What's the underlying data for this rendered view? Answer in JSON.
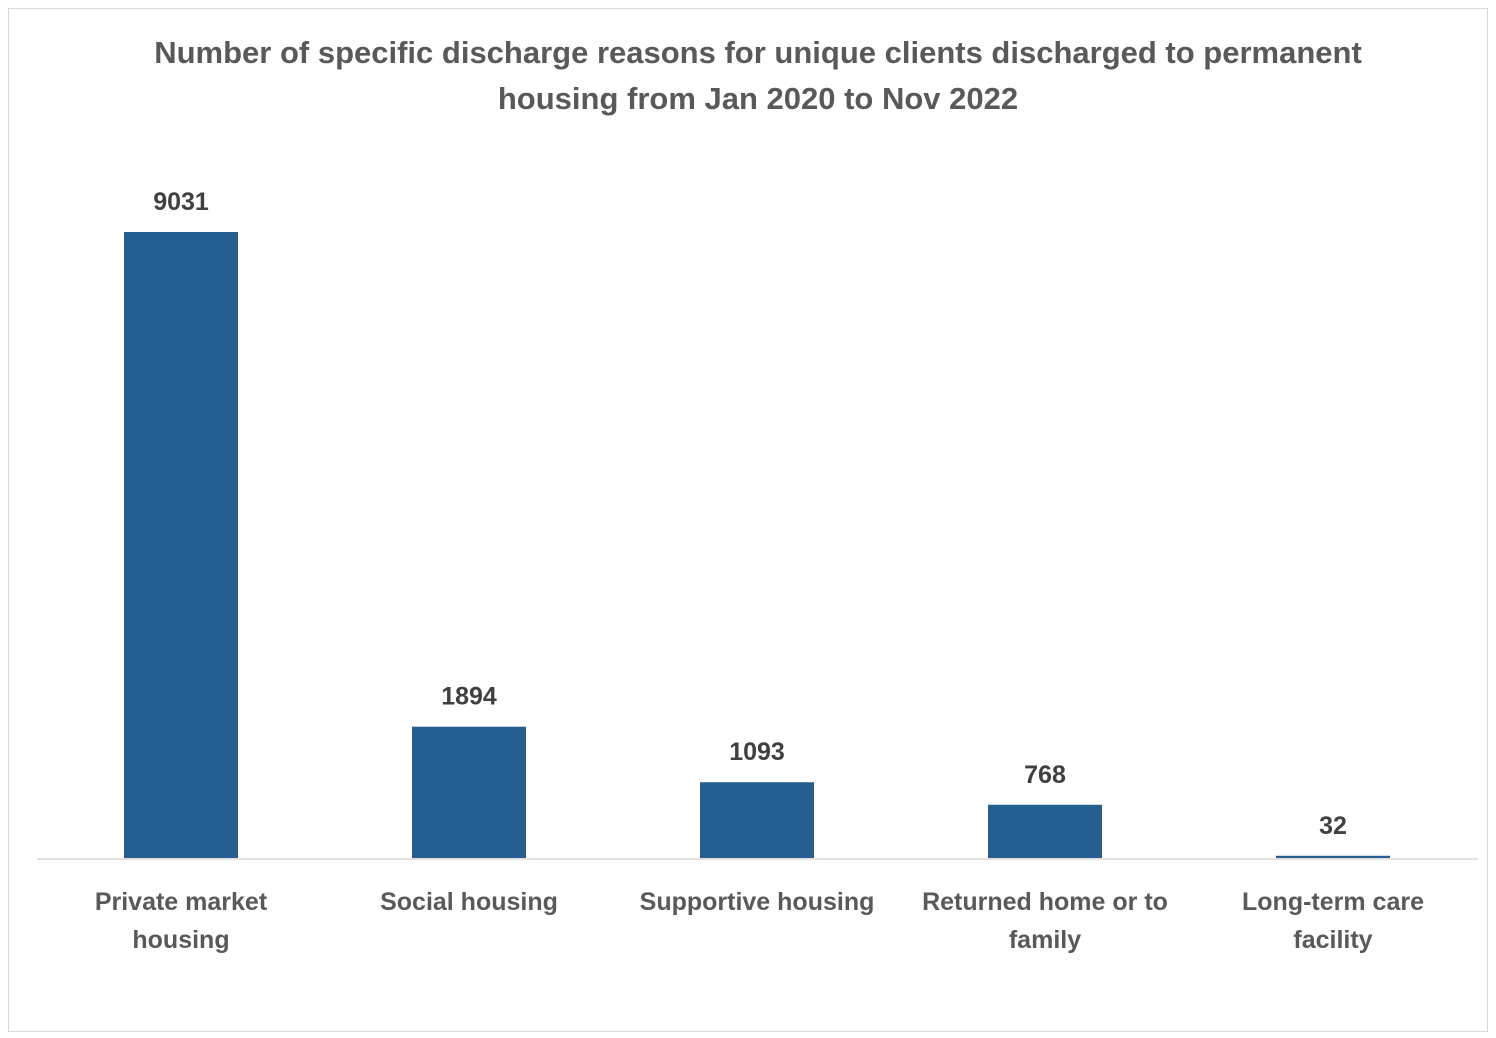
{
  "chart_data": {
    "type": "bar",
    "title": "Number of specific discharge reasons for unique clients discharged to permanent housing from Jan 2020 to Nov 2022",
    "categories": [
      [
        "Private market",
        "housing"
      ],
      [
        "Social housing"
      ],
      [
        "Supportive housing"
      ],
      [
        "Returned home or to",
        "family"
      ],
      [
        "Long-term care",
        "facility"
      ]
    ],
    "values": [
      9031,
      1894,
      1093,
      768,
      32
    ],
    "data_labels": [
      "9031",
      "1894",
      "1093",
      "768",
      "32"
    ],
    "ylim": [
      0,
      9031
    ],
    "grid": false,
    "legend": "none",
    "bar_color": "#255E91"
  }
}
